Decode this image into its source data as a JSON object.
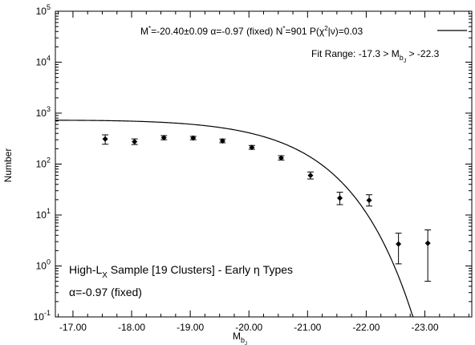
{
  "chart_data": {
    "type": "scatter",
    "y_scale": "log",
    "xlim": [
      -16.7,
      -23.8
    ],
    "ylim": [
      0.1,
      100000
    ],
    "x_tick_values": [
      -17,
      -18,
      -19,
      -20,
      -21,
      -22,
      -23
    ],
    "x_tick_labels": [
      "-17.00",
      "-18.00",
      "-19.00",
      "-20.00",
      "-21.00",
      "-22.00",
      "-23.00"
    ],
    "y_tick_values": [
      0.1,
      1,
      10,
      100,
      1000,
      10000,
      100000
    ],
    "y_tick_labels": [
      {
        "base": "10",
        "exp": "-1"
      },
      {
        "base": "10",
        "exp": "0"
      },
      {
        "base": "10",
        "exp": "1"
      },
      {
        "base": "10",
        "exp": "2"
      },
      {
        "base": "10",
        "exp": "3"
      },
      {
        "base": "10",
        "exp": "4"
      },
      {
        "base": "10",
        "exp": "5"
      }
    ],
    "xlabel": {
      "main": "M",
      "sub": "b",
      "subsub": "J"
    },
    "ylabel": "Number",
    "grid": false,
    "legend": {
      "placement": "top-right",
      "text_parts": [
        "M",
        "*",
        "=-20.40±0.09   α=-0.97 (fixed)   N",
        "*",
        "=901   P(χ",
        "2",
        "|ν)=0.03"
      ],
      "fit_range_parts": [
        "Fit Range: -17.3 > M",
        "b",
        "J",
        " > -22.3"
      ]
    },
    "annotations": {
      "sample_parts": [
        "High-L",
        "X",
        " Sample [19 Clusters] - Early η Types"
      ],
      "alpha": "α=-0.97 (fixed)"
    },
    "points": [
      {
        "x": -17.55,
        "y": 310,
        "ylo": 245,
        "yhi": 375
      },
      {
        "x": -18.05,
        "y": 275,
        "ylo": 242,
        "yhi": 312
      },
      {
        "x": -18.55,
        "y": 330,
        "ylo": 300,
        "yhi": 362
      },
      {
        "x": -19.05,
        "y": 325,
        "ylo": 300,
        "yhi": 350
      },
      {
        "x": -19.55,
        "y": 285,
        "ylo": 262,
        "yhi": 310
      },
      {
        "x": -20.05,
        "y": 212,
        "ylo": 195,
        "yhi": 232
      },
      {
        "x": -20.55,
        "y": 132,
        "ylo": 120,
        "yhi": 146
      },
      {
        "x": -21.05,
        "y": 60,
        "ylo": 51,
        "yhi": 70
      },
      {
        "x": -21.55,
        "y": 21.5,
        "ylo": 16,
        "yhi": 28
      },
      {
        "x": -22.05,
        "y": 19.5,
        "ylo": 15,
        "yhi": 25
      },
      {
        "x": -22.55,
        "y": 2.7,
        "ylo": 1.1,
        "yhi": 4.4
      },
      {
        "x": -23.05,
        "y": 2.8,
        "ylo": 0.5,
        "yhi": 5.1
      }
    ],
    "fit": {
      "type": "schechter",
      "m_star": -20.4,
      "alpha": -0.97,
      "n_star": 901,
      "x_range": [
        -16.7,
        -23.8
      ]
    }
  }
}
